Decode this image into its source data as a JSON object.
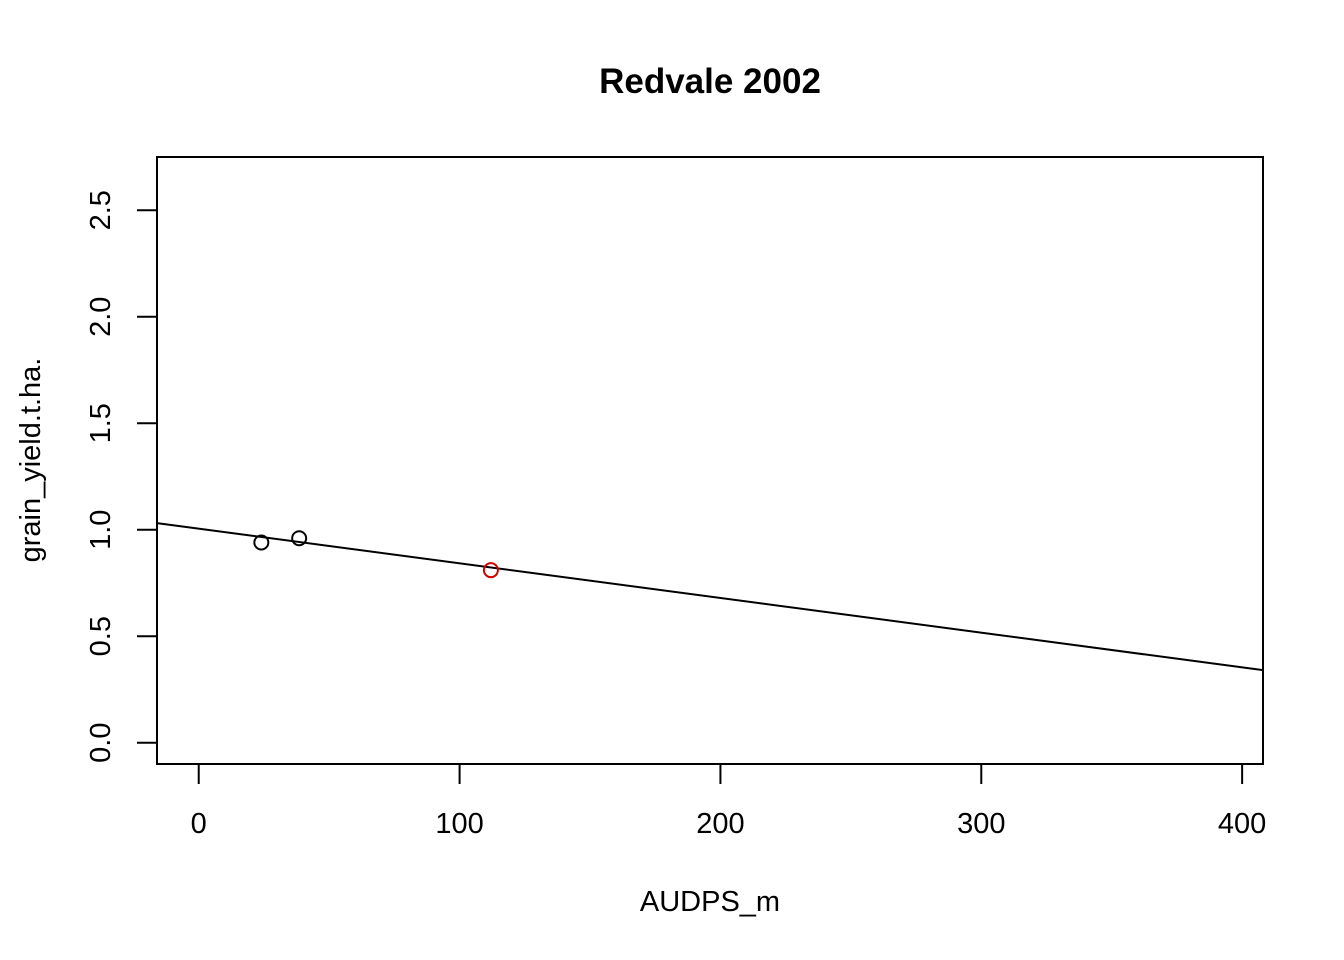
{
  "chart_data": {
    "type": "scatter",
    "title": "Redvale 2002",
    "xlabel": "AUDPS_m",
    "ylabel": "grain_yield.t.ha.",
    "xlim": [
      -16,
      408
    ],
    "ylim": [
      -0.1,
      2.75
    ],
    "x_ticks": [
      0,
      100,
      200,
      300,
      400
    ],
    "x_tick_labels": [
      "0",
      "100",
      "200",
      "300",
      "400"
    ],
    "y_ticks": [
      0.0,
      0.5,
      1.0,
      1.5,
      2.0,
      2.5
    ],
    "y_tick_labels": [
      "0.0",
      "0.5",
      "1.0",
      "1.5",
      "2.0",
      "2.5"
    ],
    "grid": false,
    "series": [
      {
        "points": [
          {
            "x": 24,
            "y": 0.94,
            "color": "#000000"
          },
          {
            "x": 38.5,
            "y": 0.96,
            "color": "#000000"
          },
          {
            "x": 112,
            "y": 0.81,
            "color": "#d00000"
          }
        ]
      }
    ],
    "fit_line": {
      "intercept": 1.005,
      "slope": -0.001628,
      "color": "#000000"
    }
  }
}
